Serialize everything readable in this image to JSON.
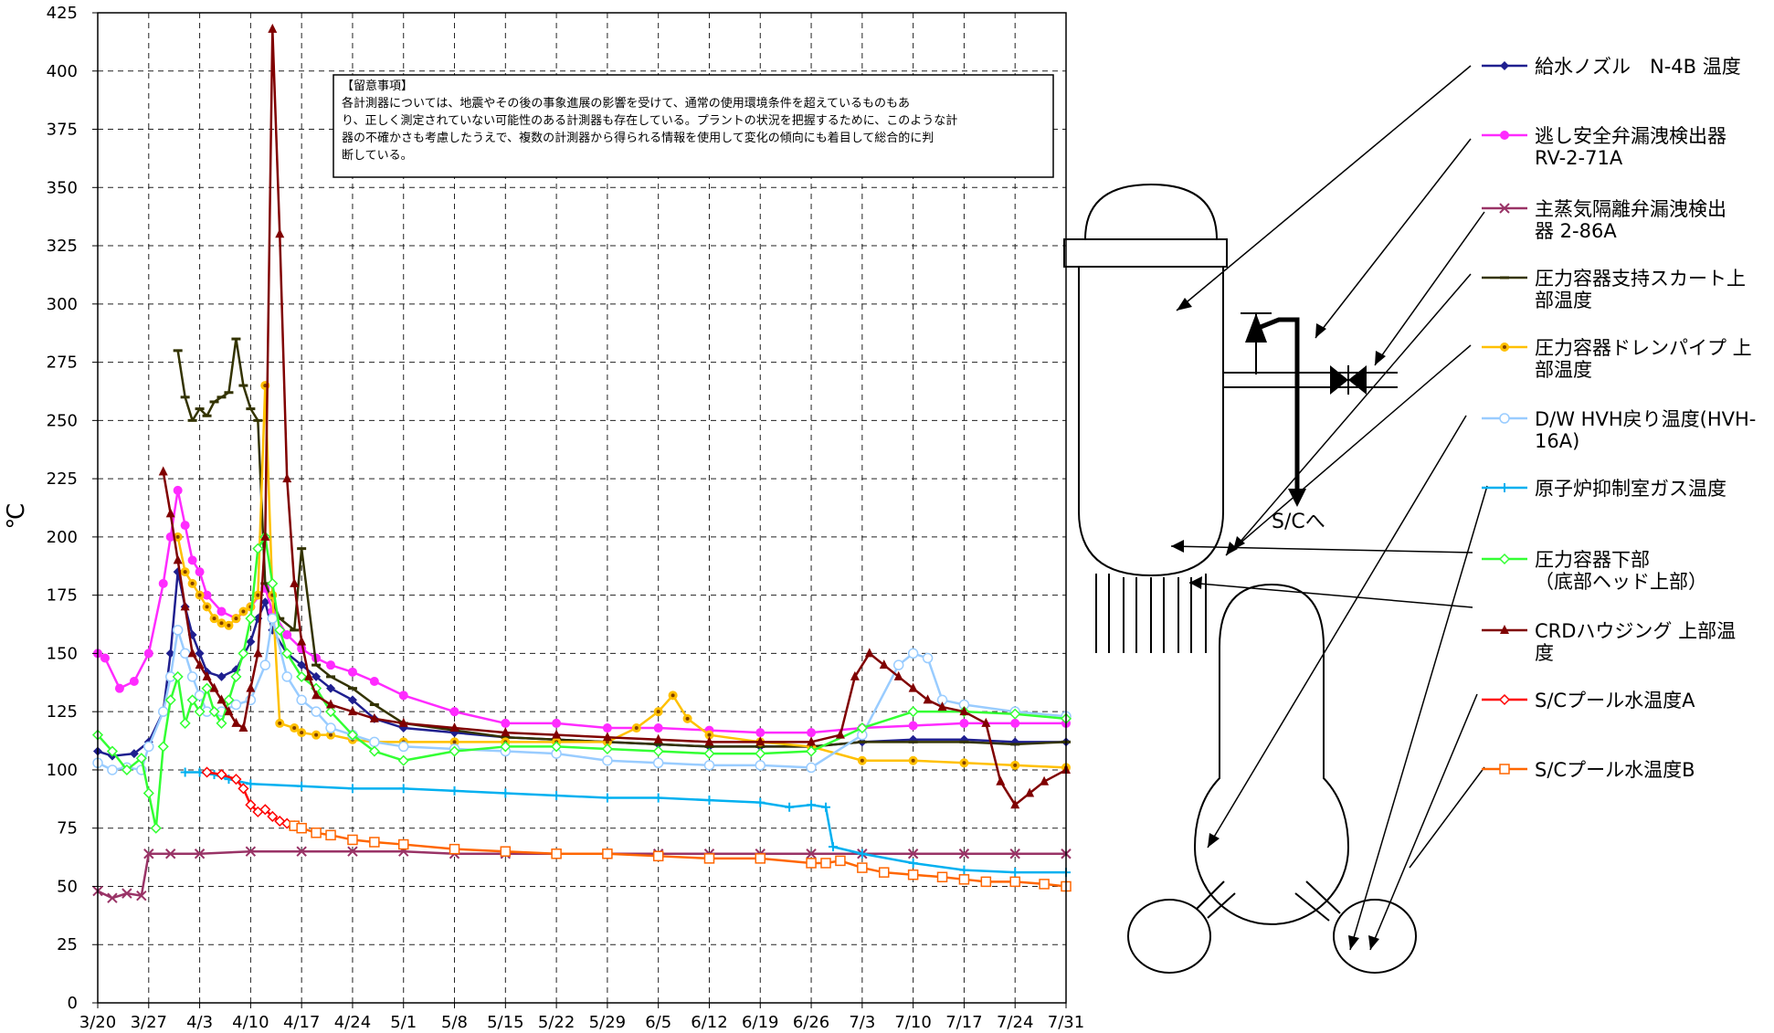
{
  "chart_data": {
    "type": "line",
    "title": "",
    "ylabel": "℃",
    "xlabel": "",
    "ylim": [
      0,
      425
    ],
    "xlim": [
      0,
      133
    ],
    "yticks": [
      0,
      25,
      50,
      75,
      100,
      125,
      150,
      175,
      200,
      225,
      250,
      275,
      300,
      325,
      350,
      375,
      400,
      425
    ],
    "xticks": [
      {
        "pos": 0,
        "label": "3/20"
      },
      {
        "pos": 7,
        "label": "3/27"
      },
      {
        "pos": 14,
        "label": "4/3"
      },
      {
        "pos": 21,
        "label": "4/10"
      },
      {
        "pos": 28,
        "label": "4/17"
      },
      {
        "pos": 35,
        "label": "4/24"
      },
      {
        "pos": 42,
        "label": "5/1"
      },
      {
        "pos": 49,
        "label": "5/8"
      },
      {
        "pos": 56,
        "label": "5/15"
      },
      {
        "pos": 63,
        "label": "5/22"
      },
      {
        "pos": 70,
        "label": "5/29"
      },
      {
        "pos": 77,
        "label": "6/5"
      },
      {
        "pos": 84,
        "label": "6/12"
      },
      {
        "pos": 91,
        "label": "6/19"
      },
      {
        "pos": 98,
        "label": "6/26"
      },
      {
        "pos": 105,
        "label": "7/3"
      },
      {
        "pos": 112,
        "label": "7/10"
      },
      {
        "pos": 119,
        "label": "7/17"
      },
      {
        "pos": 126,
        "label": "7/24"
      },
      {
        "pos": 133,
        "label": "7/31"
      }
    ],
    "grid": true,
    "legend_position": "right",
    "series": [
      {
        "name": "給水ノズル N-4B 温度",
        "color": "#1f1f8f",
        "marker": "diamond",
        "x": [
          0,
          2,
          5,
          7,
          9,
          10,
          11,
          12,
          13,
          14,
          15,
          17,
          19,
          21,
          22,
          23,
          24,
          26,
          28,
          30,
          32,
          35,
          38,
          42,
          49,
          56,
          63,
          70,
          77,
          84,
          91,
          98,
          105,
          112,
          119,
          126,
          133
        ],
        "y": [
          108,
          106,
          107,
          112,
          125,
          150,
          185,
          170,
          158,
          150,
          142,
          140,
          143,
          155,
          165,
          172,
          160,
          150,
          145,
          140,
          135,
          130,
          122,
          118,
          116,
          114,
          113,
          112,
          111,
          110,
          110,
          110,
          112,
          113,
          113,
          112,
          112
        ]
      },
      {
        "name": "逃し安全弁漏洩検出器 RV-2-71A",
        "color": "#ff2bff",
        "marker": "circle",
        "x": [
          0,
          1,
          3,
          5,
          7,
          9,
          10,
          11,
          12,
          13,
          14,
          15,
          17,
          19,
          21,
          23,
          24,
          26,
          28,
          30,
          32,
          35,
          38,
          42,
          49,
          56,
          63,
          70,
          77,
          84,
          91,
          98,
          105,
          112,
          119,
          126,
          133
        ],
        "y": [
          150,
          148,
          135,
          138,
          150,
          180,
          200,
          220,
          205,
          190,
          185,
          175,
          168,
          165,
          170,
          178,
          168,
          158,
          152,
          148,
          145,
          142,
          138,
          132,
          125,
          120,
          120,
          118,
          118,
          117,
          116,
          116,
          118,
          119,
          120,
          120,
          120
        ]
      },
      {
        "name": "主蒸気隔離弁漏洩検出器 2-86A",
        "color": "#993366",
        "marker": "x",
        "x": [
          0,
          2,
          4,
          6,
          7,
          10,
          14,
          21,
          28,
          35,
          42,
          49,
          56,
          63,
          70,
          77,
          84,
          91,
          98,
          105,
          112,
          119,
          126,
          133
        ],
        "y": [
          48,
          45,
          47,
          46,
          64,
          64,
          64,
          65,
          65,
          65,
          65,
          64,
          64,
          64,
          64,
          64,
          64,
          64,
          64,
          64,
          64,
          64,
          64,
          64
        ]
      },
      {
        "name": "圧力容器支持スカート上部温度",
        "color": "#333300",
        "marker": "dash",
        "x": [
          11,
          12,
          13,
          14,
          15,
          16,
          17,
          18,
          19,
          20,
          21,
          22,
          23,
          25,
          27,
          28,
          30,
          32,
          35,
          38,
          42,
          49,
          56,
          63,
          70,
          77,
          84,
          91,
          98,
          105,
          112,
          119,
          126,
          133
        ],
        "y": [
          280,
          260,
          250,
          255,
          252,
          258,
          260,
          262,
          285,
          265,
          255,
          250,
          180,
          165,
          160,
          195,
          145,
          140,
          135,
          128,
          120,
          117,
          114,
          113,
          112,
          111,
          110,
          110,
          110,
          112,
          112,
          112,
          111,
          112
        ]
      },
      {
        "name": "圧力容器ドレンパイプ 上部温度",
        "color": "#ffc000",
        "marker": "circle-dot",
        "x": [
          11,
          12,
          13,
          14,
          15,
          16,
          17,
          18,
          19,
          20,
          21,
          22,
          23,
          24,
          25,
          27,
          28,
          30,
          32,
          35,
          38,
          42,
          49,
          56,
          63,
          70,
          74,
          77,
          79,
          81,
          84,
          91,
          98,
          105,
          112,
          119,
          126,
          133
        ],
        "y": [
          200,
          185,
          180,
          175,
          170,
          165,
          163,
          162,
          165,
          168,
          170,
          175,
          265,
          175,
          120,
          118,
          116,
          115,
          115,
          113,
          112,
          112,
          112,
          112,
          112,
          112,
          118,
          125,
          132,
          122,
          115,
          112,
          110,
          104,
          104,
          103,
          102,
          101
        ]
      },
      {
        "name": "D/W HVH戻り温度(HVH-16A)",
        "color": "#99ccff",
        "marker": "circle-open",
        "x": [
          0,
          2,
          4,
          6,
          7,
          9,
          10,
          11,
          12,
          13,
          14,
          15,
          17,
          19,
          21,
          23,
          24,
          26,
          28,
          30,
          32,
          35,
          38,
          42,
          49,
          56,
          63,
          70,
          77,
          84,
          91,
          98,
          105,
          110,
          112,
          114,
          116,
          119,
          126,
          133
        ],
        "y": [
          103,
          100,
          101,
          100,
          110,
          125,
          140,
          160,
          150,
          140,
          132,
          125,
          125,
          128,
          130,
          145,
          165,
          140,
          130,
          125,
          118,
          115,
          112,
          110,
          109,
          108,
          107,
          104,
          103,
          102,
          102,
          101,
          115,
          145,
          150,
          148,
          130,
          128,
          125,
          123
        ]
      },
      {
        "name": "原子炉抑制室ガス温度",
        "color": "#00b0f0",
        "marker": "plus",
        "x": [
          12,
          14,
          16,
          18,
          21,
          28,
          35,
          42,
          49,
          56,
          63,
          70,
          77,
          84,
          91,
          95,
          98,
          100,
          101,
          105,
          112,
          119,
          126,
          133
        ],
        "y": [
          99,
          99,
          98,
          96,
          94,
          93,
          92,
          92,
          91,
          90,
          89,
          88,
          88,
          87,
          86,
          84,
          85,
          84,
          67,
          64,
          60,
          57,
          56,
          56
        ]
      },
      {
        "name": "圧力容器下部 （底部ヘッド上部）",
        "color": "#33ff33",
        "marker": "diamond-open",
        "x": [
          0,
          2,
          4,
          6,
          7,
          8,
          9,
          10,
          11,
          12,
          13,
          14,
          15,
          16,
          17,
          18,
          19,
          20,
          21,
          22,
          23,
          24,
          25,
          26,
          28,
          30,
          32,
          35,
          38,
          42,
          49,
          56,
          63,
          70,
          77,
          84,
          91,
          98,
          105,
          112,
          119,
          126,
          133
        ],
        "y": [
          115,
          108,
          100,
          105,
          90,
          75,
          110,
          130,
          140,
          120,
          130,
          125,
          135,
          125,
          120,
          130,
          140,
          150,
          165,
          195,
          200,
          180,
          160,
          150,
          140,
          135,
          125,
          115,
          108,
          104,
          108,
          110,
          110,
          109,
          108,
          107,
          107,
          108,
          118,
          125,
          125,
          124,
          122
        ]
      },
      {
        "name": "CRDハウジング 上部温度",
        "color": "#800000",
        "marker": "triangle",
        "x": [
          9,
          10,
          11,
          12,
          13,
          14,
          15,
          16,
          17,
          18,
          19,
          20,
          21,
          22,
          23,
          24,
          25,
          26,
          27,
          28,
          29,
          30,
          32,
          35,
          38,
          42,
          49,
          56,
          63,
          70,
          77,
          84,
          91,
          98,
          102,
          104,
          106,
          108,
          110,
          112,
          114,
          116,
          119,
          122,
          124,
          126,
          128,
          130,
          133
        ],
        "y": [
          228,
          210,
          190,
          170,
          150,
          145,
          140,
          135,
          130,
          125,
          120,
          118,
          135,
          150,
          200,
          418,
          330,
          225,
          180,
          155,
          140,
          132,
          128,
          125,
          122,
          120,
          118,
          116,
          115,
          114,
          113,
          112,
          112,
          112,
          115,
          140,
          150,
          145,
          140,
          135,
          130,
          127,
          125,
          120,
          95,
          85,
          90,
          95,
          100
        ]
      },
      {
        "name": "S/Cプール水温度A",
        "color": "#ff0000",
        "marker": "diamond-open",
        "x": [
          15,
          17,
          19,
          20,
          21,
          22,
          23,
          24,
          25,
          26,
          27
        ],
        "y": [
          99,
          98,
          96,
          92,
          85,
          82,
          83,
          80,
          78,
          77,
          76
        ]
      },
      {
        "name": "S/Cプール水温度B",
        "color": "#ff6600",
        "marker": "square-open",
        "x": [
          27,
          28,
          30,
          32,
          35,
          38,
          42,
          49,
          56,
          63,
          70,
          77,
          84,
          91,
          98,
          100,
          102,
          105,
          108,
          112,
          116,
          119,
          122,
          126,
          130,
          133
        ],
        "y": [
          76,
          75,
          73,
          72,
          70,
          69,
          68,
          66,
          65,
          64,
          64,
          63,
          62,
          62,
          60,
          60,
          61,
          58,
          56,
          55,
          54,
          53,
          52,
          52,
          51,
          50
        ]
      }
    ]
  },
  "note": {
    "heading": "【留意事項】",
    "lines": [
      "各計測器については、地震やその後の事象進展の影響を受けて、通常の使用環境条件を超えているものもあ",
      "り、正しく測定されていない可能性のある計測器も存在している。プラントの状況を把握するために、このような計",
      "器の不確かさも考慮したうえで、複数の計測器から得られる情報を使用して変化の傾向にも着目して総合的に判",
      "断している。"
    ]
  },
  "legend_items": [
    {
      "lines": [
        "給水ノズル　N-4B 温度"
      ]
    },
    {
      "lines": [
        "逃し安全弁漏洩検出器",
        "RV-2-71A"
      ]
    },
    {
      "lines": [
        "主蒸気隔離弁漏洩検出",
        "器 2-86A"
      ]
    },
    {
      "lines": [
        "圧力容器支持スカート上",
        "部温度"
      ]
    },
    {
      "lines": [
        "圧力容器ドレンパイプ 上",
        "部温度"
      ]
    },
    {
      "lines": [
        "D/W HVH戻り温度(HVH-",
        "16A)"
      ]
    },
    {
      "lines": [
        "原子炉抑制室ガス温度"
      ]
    },
    {
      "lines": [
        "圧力容器下部",
        "（底部ヘッド上部）"
      ]
    },
    {
      "lines": [
        "CRDハウジング 上部温",
        "度"
      ]
    },
    {
      "lines": [
        "S/Cプール水温度A"
      ]
    },
    {
      "lines": [
        "S/Cプール水温度B"
      ]
    }
  ],
  "diagram": {
    "sc_label": "S/Cへ"
  }
}
